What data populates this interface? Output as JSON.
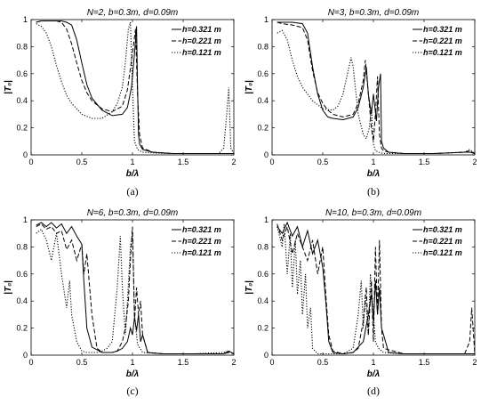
{
  "chart_data": [
    {
      "type": "line",
      "title": "N=2, b=0.3m, d=0.09m",
      "xlabel": "b/λ",
      "ylabel": "|T₀|",
      "caption": "(a)",
      "xlim": [
        0,
        2
      ],
      "ylim": [
        0,
        1
      ],
      "xticks": [
        "0",
        "0.5",
        "1",
        "1.5",
        "2"
      ],
      "yticks": [
        "0",
        "0.2",
        "0.4",
        "0.6",
        "0.8",
        "1"
      ],
      "legend_position": "top-right",
      "series": [
        {
          "name": "h=0.321 m",
          "style": "solid",
          "x": [
            0.05,
            0.1,
            0.2,
            0.3,
            0.35,
            0.4,
            0.45,
            0.5,
            0.55,
            0.6,
            0.7,
            0.8,
            0.9,
            0.95,
            0.99,
            1.02,
            1.04,
            1.05,
            1.06,
            1.07,
            1.1,
            1.2,
            1.4,
            1.6,
            1.8,
            1.95,
            2.0
          ],
          "y": [
            0.98,
            0.99,
            0.99,
            0.99,
            0.98,
            0.96,
            0.85,
            0.68,
            0.52,
            0.42,
            0.33,
            0.29,
            0.3,
            0.35,
            0.5,
            0.75,
            0.95,
            0.5,
            0.15,
            0.08,
            0.04,
            0.02,
            0.01,
            0.01,
            0.01,
            0.01,
            0.01
          ]
        },
        {
          "name": "h=0.221 m",
          "style": "dashed",
          "x": [
            0.05,
            0.1,
            0.2,
            0.25,
            0.3,
            0.35,
            0.4,
            0.45,
            0.5,
            0.55,
            0.6,
            0.7,
            0.8,
            0.9,
            0.95,
            1.0,
            1.03,
            1.05,
            1.07,
            1.1,
            1.2,
            1.4,
            1.6,
            1.8,
            2.0
          ],
          "y": [
            0.98,
            0.99,
            0.99,
            0.99,
            0.98,
            0.93,
            0.82,
            0.68,
            0.55,
            0.46,
            0.4,
            0.34,
            0.32,
            0.36,
            0.48,
            0.75,
            0.93,
            0.45,
            0.15,
            0.05,
            0.02,
            0.01,
            0.01,
            0.01,
            0.01
          ]
        },
        {
          "name": "h=0.121 m",
          "style": "dotted",
          "x": [
            0.05,
            0.1,
            0.15,
            0.2,
            0.25,
            0.3,
            0.35,
            0.4,
            0.5,
            0.6,
            0.7,
            0.8,
            0.85,
            0.9,
            0.93,
            0.96,
            0.98,
            1.0,
            1.02,
            1.05,
            1.1,
            1.3,
            1.6,
            1.85,
            1.9,
            1.93,
            1.95,
            1.97,
            2.0
          ],
          "y": [
            0.97,
            0.95,
            0.9,
            0.8,
            0.66,
            0.54,
            0.44,
            0.38,
            0.3,
            0.27,
            0.27,
            0.32,
            0.38,
            0.5,
            0.68,
            0.93,
            0.98,
            0.5,
            0.1,
            0.04,
            0.02,
            0.01,
            0.01,
            0.01,
            0.05,
            0.3,
            0.5,
            0.05,
            0.01
          ]
        }
      ]
    },
    {
      "type": "line",
      "title": "N=3, b=0.3m, d=0.09m",
      "xlabel": "b/λ",
      "ylabel": "|T₀|",
      "caption": "(b)",
      "xlim": [
        0,
        2
      ],
      "ylim": [
        0,
        1
      ],
      "xticks": [
        "0",
        "0.5",
        "1",
        "1.5",
        "2"
      ],
      "yticks": [
        "0",
        "0.2",
        "0.4",
        "0.6",
        "0.8",
        "1"
      ],
      "legend_position": "top-right",
      "series": [
        {
          "name": "h=0.321 m",
          "style": "solid",
          "x": [
            0.05,
            0.1,
            0.2,
            0.3,
            0.35,
            0.4,
            0.45,
            0.5,
            0.55,
            0.6,
            0.7,
            0.8,
            0.85,
            0.9,
            0.93,
            0.95,
            0.98,
            1.0,
            1.03,
            1.05,
            1.07,
            1.08,
            1.1,
            1.15,
            1.3,
            1.6,
            1.9,
            1.95,
            2.0
          ],
          "y": [
            0.98,
            0.98,
            0.98,
            0.97,
            0.9,
            0.65,
            0.45,
            0.33,
            0.28,
            0.27,
            0.26,
            0.28,
            0.35,
            0.5,
            0.65,
            0.45,
            0.3,
            0.45,
            0.25,
            0.5,
            0.6,
            0.1,
            0.05,
            0.02,
            0.01,
            0.01,
            0.02,
            0.02,
            0.01
          ]
        },
        {
          "name": "h=0.221 m",
          "style": "dashed",
          "x": [
            0.05,
            0.1,
            0.2,
            0.3,
            0.35,
            0.4,
            0.45,
            0.5,
            0.55,
            0.6,
            0.7,
            0.8,
            0.85,
            0.9,
            0.92,
            0.95,
            0.98,
            1.0,
            1.02,
            1.04,
            1.06,
            1.08,
            1.1,
            1.15,
            1.3,
            1.6,
            1.9,
            1.95,
            2.0
          ],
          "y": [
            0.98,
            0.97,
            0.96,
            0.94,
            0.85,
            0.62,
            0.46,
            0.38,
            0.33,
            0.3,
            0.28,
            0.3,
            0.38,
            0.55,
            0.7,
            0.45,
            0.2,
            0.1,
            0.3,
            0.58,
            0.15,
            0.05,
            0.03,
            0.02,
            0.01,
            0.01,
            0.02,
            0.03,
            0.01
          ]
        },
        {
          "name": "h=0.121 m",
          "style": "dotted",
          "x": [
            0.05,
            0.1,
            0.15,
            0.2,
            0.25,
            0.3,
            0.35,
            0.4,
            0.5,
            0.6,
            0.65,
            0.7,
            0.75,
            0.78,
            0.8,
            0.85,
            0.9,
            0.93,
            0.96,
            0.98,
            1.0,
            1.02,
            1.05,
            1.1,
            1.3,
            1.6,
            1.9,
            1.95,
            2.0
          ],
          "y": [
            0.9,
            0.92,
            0.85,
            0.7,
            0.58,
            0.5,
            0.45,
            0.4,
            0.34,
            0.33,
            0.36,
            0.45,
            0.62,
            0.72,
            0.65,
            0.3,
            0.15,
            0.12,
            0.2,
            0.35,
            0.08,
            0.03,
            0.02,
            0.01,
            0.01,
            0.01,
            0.02,
            0.04,
            0.01
          ]
        }
      ]
    },
    {
      "type": "line",
      "title": "N=6, b=0.3m, d=0.09m",
      "xlabel": "b/λ",
      "ylabel": "|T₀|",
      "caption": "(c)",
      "xlim": [
        0,
        2
      ],
      "ylim": [
        0,
        1
      ],
      "xticks": [
        "0",
        "0.5",
        "1",
        "1.5",
        "2"
      ],
      "yticks": [
        "0",
        "0.2",
        "0.4",
        "0.6",
        "0.8",
        "1"
      ],
      "legend_position": "top-right",
      "series": [
        {
          "name": "h=0.321 m",
          "style": "solid",
          "x": [
            0.05,
            0.1,
            0.15,
            0.2,
            0.25,
            0.3,
            0.35,
            0.4,
            0.45,
            0.5,
            0.52,
            0.55,
            0.6,
            0.7,
            0.8,
            0.85,
            0.9,
            0.95,
            0.98,
            1.0,
            1.02,
            1.04,
            1.06,
            1.08,
            1.1,
            1.15,
            1.3,
            1.6,
            1.9,
            1.95,
            2.0
          ],
          "y": [
            0.96,
            0.98,
            0.95,
            0.98,
            0.94,
            0.97,
            0.9,
            0.95,
            0.88,
            0.82,
            0.55,
            0.2,
            0.06,
            0.02,
            0.02,
            0.03,
            0.05,
            0.1,
            0.2,
            0.15,
            0.28,
            0.18,
            0.3,
            0.1,
            0.15,
            0.02,
            0.01,
            0.01,
            0.01,
            0.03,
            0.01
          ]
        },
        {
          "name": "h=0.221 m",
          "style": "dashed",
          "x": [
            0.05,
            0.1,
            0.15,
            0.2,
            0.25,
            0.3,
            0.35,
            0.4,
            0.45,
            0.5,
            0.52,
            0.55,
            0.6,
            0.65,
            0.7,
            0.8,
            0.85,
            0.9,
            0.93,
            0.96,
            0.98,
            1.0,
            1.02,
            1.04,
            1.06,
            1.08,
            1.1,
            1.15,
            1.3,
            1.6,
            1.9,
            1.95,
            2.0
          ],
          "y": [
            0.95,
            0.97,
            0.93,
            0.95,
            0.9,
            0.92,
            0.78,
            0.85,
            0.7,
            0.82,
            0.6,
            0.75,
            0.3,
            0.05,
            0.02,
            0.02,
            0.03,
            0.1,
            0.2,
            0.4,
            0.7,
            0.95,
            0.25,
            0.5,
            0.3,
            0.4,
            0.15,
            0.02,
            0.01,
            0.01,
            0.01,
            0.02,
            0.01
          ]
        },
        {
          "name": "h=0.121 m",
          "style": "dotted",
          "x": [
            0.05,
            0.1,
            0.15,
            0.2,
            0.25,
            0.3,
            0.35,
            0.38,
            0.4,
            0.45,
            0.5,
            0.55,
            0.6,
            0.65,
            0.7,
            0.75,
            0.8,
            0.85,
            0.88,
            0.9,
            0.93,
            0.95,
            0.98,
            1.0,
            1.02,
            1.05,
            1.1,
            1.3,
            1.6,
            1.9,
            1.95,
            2.0
          ],
          "y": [
            0.9,
            0.93,
            0.85,
            0.7,
            0.9,
            0.6,
            0.35,
            0.55,
            0.3,
            0.1,
            0.03,
            0.02,
            0.02,
            0.02,
            0.03,
            0.05,
            0.1,
            0.5,
            0.88,
            0.5,
            0.15,
            0.4,
            0.8,
            0.9,
            0.3,
            0.08,
            0.02,
            0.01,
            0.01,
            0.02,
            0.03,
            0.01
          ]
        }
      ]
    },
    {
      "type": "line",
      "title": "N=10, b=0.3m, d=0.09m",
      "xlabel": "b/λ",
      "ylabel": "|T₀|",
      "caption": "(d)",
      "xlim": [
        0,
        2
      ],
      "ylim": [
        0,
        1
      ],
      "xticks": [
        "0",
        "0.5",
        "1",
        "1.5",
        "2"
      ],
      "yticks": [
        "0",
        "0.2",
        "0.4",
        "0.6",
        "0.8",
        "1"
      ],
      "legend_position": "top-right",
      "series": [
        {
          "name": "h=0.321 m",
          "style": "solid",
          "x": [
            0.05,
            0.1,
            0.15,
            0.2,
            0.25,
            0.3,
            0.35,
            0.4,
            0.45,
            0.5,
            0.53,
            0.56,
            0.6,
            0.7,
            0.8,
            0.9,
            0.95,
            0.98,
            1.0,
            1.02,
            1.04,
            1.06,
            1.08,
            1.1,
            1.15,
            1.3,
            1.6,
            1.9,
            1.95,
            2.0
          ],
          "y": [
            0.95,
            0.9,
            0.98,
            0.88,
            0.95,
            0.8,
            0.92,
            0.75,
            0.85,
            0.65,
            0.4,
            0.1,
            0.02,
            0.01,
            0.02,
            0.1,
            0.3,
            0.45,
            0.25,
            0.55,
            0.3,
            0.5,
            0.2,
            0.15,
            0.02,
            0.01,
            0.01,
            0.01,
            0.01,
            0.01
          ]
        },
        {
          "name": "h=0.221 m",
          "style": "dashed",
          "x": [
            0.05,
            0.1,
            0.15,
            0.2,
            0.25,
            0.3,
            0.35,
            0.4,
            0.45,
            0.5,
            0.53,
            0.56,
            0.6,
            0.7,
            0.8,
            0.85,
            0.9,
            0.93,
            0.95,
            0.98,
            1.0,
            1.02,
            1.04,
            1.06,
            1.08,
            1.1,
            1.3,
            1.6,
            1.9,
            1.95,
            1.97,
            2.0
          ],
          "y": [
            0.97,
            0.85,
            0.95,
            0.75,
            0.9,
            0.8,
            0.7,
            0.85,
            0.6,
            0.8,
            0.45,
            0.15,
            0.03,
            0.01,
            0.02,
            0.05,
            0.25,
            0.5,
            0.15,
            0.55,
            0.1,
            0.8,
            0.3,
            0.85,
            0.2,
            0.05,
            0.01,
            0.01,
            0.01,
            0.1,
            0.35,
            0.01
          ]
        },
        {
          "name": "h=0.121 m",
          "style": "dotted",
          "x": [
            0.05,
            0.1,
            0.12,
            0.15,
            0.18,
            0.2,
            0.23,
            0.25,
            0.28,
            0.3,
            0.33,
            0.35,
            0.38,
            0.4,
            0.45,
            0.5,
            0.6,
            0.7,
            0.8,
            0.85,
            0.88,
            0.9,
            0.92,
            0.95,
            0.97,
            1.0,
            1.02,
            1.05,
            1.1,
            1.3,
            1.6,
            1.9,
            2.0
          ],
          "y": [
            0.95,
            0.8,
            0.97,
            0.6,
            0.9,
            0.5,
            0.85,
            0.45,
            0.7,
            0.3,
            0.6,
            0.2,
            0.35,
            0.05,
            0.01,
            0.01,
            0.01,
            0.01,
            0.05,
            0.3,
            0.55,
            0.2,
            0.45,
            0.15,
            0.6,
            0.3,
            0.1,
            0.05,
            0.02,
            0.01,
            0.01,
            0.01,
            0.01
          ]
        }
      ]
    }
  ]
}
